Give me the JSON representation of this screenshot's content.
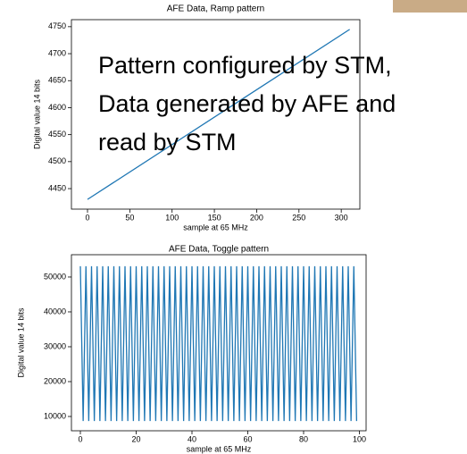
{
  "overlay": {
    "lines": [
      "Pattern configured by STM,",
      "Data generated by AFE and",
      "read by STM"
    ]
  },
  "chart_data": [
    {
      "type": "line",
      "title": "AFE Data, Ramp pattern",
      "x_label": "sample at 65 MHz",
      "y_label": "Digital value 14 bits",
      "x": [
        0,
        310
      ],
      "values": [
        4430,
        4745
      ],
      "color": "#1f77b4",
      "xlim": [
        -19,
        322
      ],
      "ylim": [
        4412,
        4763
      ],
      "xticks": [
        0,
        50,
        100,
        150,
        200,
        250,
        300
      ],
      "yticks": [
        4450,
        4500,
        4550,
        4600,
        4650,
        4700,
        4750
      ],
      "grid": false
    },
    {
      "type": "line",
      "title": "AFE Data, Toggle pattern",
      "x_label": "sample at 65 MHz",
      "y_label": "Digital value 14 bits",
      "x": [
        0,
        1,
        2,
        3,
        4,
        5,
        6,
        7,
        8,
        9,
        10,
        11,
        12,
        13,
        14,
        15,
        16,
        17,
        18,
        19,
        20,
        21,
        22,
        23,
        24,
        25,
        26,
        27,
        28,
        29,
        30,
        31,
        32,
        33,
        34,
        35,
        36,
        37,
        38,
        39,
        40,
        41,
        42,
        43,
        44,
        45,
        46,
        47,
        48,
        49,
        50,
        51,
        52,
        53,
        54,
        55,
        56,
        57,
        58,
        59,
        60,
        61,
        62,
        63,
        64,
        65,
        66,
        67,
        68,
        69,
        70,
        71,
        72,
        73,
        74,
        75,
        76,
        77,
        78,
        79,
        80,
        81,
        82,
        83,
        84,
        85,
        86,
        87,
        88,
        89,
        90,
        91,
        92,
        93,
        94,
        95,
        96,
        97,
        98,
        99
      ],
      "values": [
        53100,
        8700,
        53100,
        8700,
        53100,
        8700,
        53100,
        8700,
        53100,
        8700,
        53100,
        8700,
        53100,
        8700,
        53100,
        8700,
        53100,
        8700,
        53100,
        8700,
        53100,
        8700,
        53100,
        8700,
        53100,
        8700,
        53100,
        8700,
        53100,
        8700,
        53100,
        8700,
        53100,
        8700,
        53100,
        8700,
        53100,
        8700,
        53100,
        8700,
        53100,
        8700,
        53100,
        8700,
        53100,
        8700,
        53100,
        8700,
        53100,
        8700,
        53100,
        8700,
        53100,
        8700,
        53100,
        8700,
        53100,
        8700,
        53100,
        8700,
        53100,
        8700,
        53100,
        8700,
        53100,
        8700,
        53100,
        8700,
        53100,
        8700,
        53100,
        8700,
        53100,
        8700,
        53100,
        8700,
        53100,
        8700,
        53100,
        8700,
        53100,
        8700,
        53100,
        8700,
        53100,
        8700,
        53100,
        8700,
        53100,
        8700,
        53100,
        8700,
        53100,
        8700,
        53100,
        8700,
        53100,
        8700,
        53100,
        8700
      ],
      "color": "#1f77b4",
      "xlim": [
        -3.2,
        102.4
      ],
      "ylim": [
        5900,
        56400
      ],
      "xticks": [
        0,
        20,
        40,
        60,
        80,
        100
      ],
      "yticks": [
        10000,
        20000,
        30000,
        40000,
        50000
      ],
      "grid": false
    }
  ]
}
